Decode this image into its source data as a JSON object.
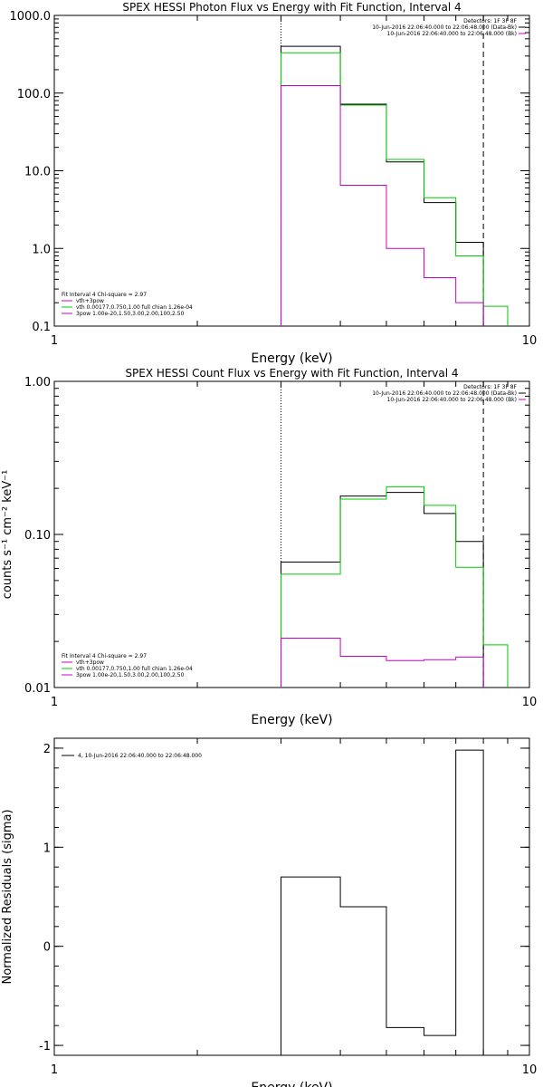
{
  "colors": {
    "black": "#000000",
    "green": "#00cc00",
    "magenta": "#cc00cc"
  },
  "chart_data": [
    {
      "type": "line",
      "title": "SPEX HESSI Photon Flux vs Energy with Fit Function, Interval 4",
      "xlabel": "Energy (keV)",
      "ylabel": "",
      "xscale": "log",
      "yscale": "log",
      "xlim": [
        1,
        10
      ],
      "ylim": [
        0.1,
        1000
      ],
      "x_ticks": [
        {
          "v": 1,
          "label": "1"
        },
        {
          "v": 10,
          "label": "10"
        }
      ],
      "y_ticks": [
        {
          "v": 0.1,
          "label": "0.1"
        },
        {
          "v": 1,
          "label": "1.0"
        },
        {
          "v": 10,
          "label": "10.0"
        },
        {
          "v": 100,
          "label": "100.0"
        },
        {
          "v": 1000,
          "label": "1000.0"
        }
      ],
      "vlines": [
        {
          "x": 3.0,
          "style": "dotted"
        },
        {
          "x": 8.0,
          "style": "dashed"
        }
      ],
      "legend_topright": [
        {
          "text": "Detectors: 1F 3F 8F",
          "color": "black"
        },
        {
          "text": "10-Jun-2016 22:06:40.000 to 22:06:48.000 (Data-Bk)",
          "color": "black"
        },
        {
          "text": "10-Jun-2016 22:06:40.000 to 22:06:48.000 (Bk)",
          "color": "magenta"
        }
      ],
      "legend_bottomleft": [
        {
          "text": "Fit Interval 4   Chi-square = 2.97",
          "color": "black"
        },
        {
          "text": "vth+3pow",
          "color": "magenta"
        },
        {
          "text": "vth 0.00177,0.750,1.00  full chian 1.26e-04",
          "color": "green"
        },
        {
          "text": "3pow 1.00e-20,1.50,3.00,2.00,100,2.50",
          "color": "magenta"
        }
      ],
      "series": [
        {
          "color": "black",
          "edges": [
            3.0,
            4.0,
            5.0,
            6.0,
            7.0,
            8.0
          ],
          "values": [
            400,
            72,
            13,
            3.9,
            1.2
          ]
        },
        {
          "color": "green",
          "edges": [
            3.0,
            4.0,
            5.0,
            6.0,
            7.0,
            8.0,
            9.0
          ],
          "values": [
            330,
            70,
            14,
            4.5,
            0.8,
            0.18
          ]
        },
        {
          "color": "magenta",
          "edges": [
            3.0,
            4.0,
            5.0,
            6.0,
            7.0,
            8.0
          ],
          "values": [
            125,
            6.5,
            1.0,
            0.42,
            0.2
          ]
        }
      ]
    },
    {
      "type": "line",
      "title": "SPEX HESSI Count Flux vs Energy with Fit Function, Interval 4",
      "xlabel": "Energy (keV)",
      "ylabel": "counts s⁻¹ cm⁻² keV⁻¹",
      "xscale": "log",
      "yscale": "log",
      "xlim": [
        1,
        10
      ],
      "ylim": [
        0.01,
        1
      ],
      "x_ticks": [
        {
          "v": 1,
          "label": "1"
        },
        {
          "v": 10,
          "label": "10"
        }
      ],
      "y_ticks": [
        {
          "v": 0.01,
          "label": "0.01"
        },
        {
          "v": 0.1,
          "label": "0.10"
        },
        {
          "v": 1,
          "label": "1.00"
        }
      ],
      "vlines": [
        {
          "x": 3.0,
          "style": "dotted"
        },
        {
          "x": 8.0,
          "style": "dashed"
        }
      ],
      "legend_topright": [
        {
          "text": "Detectors: 1F 3F 8F",
          "color": "black"
        },
        {
          "text": "10-Jun-2016 22:06:40.000 to 22:06:48.000 (Data-Bk)",
          "color": "black"
        },
        {
          "text": "10-Jun-2016 22:06:40.000 to 22:06:48.000 (Bk)",
          "color": "magenta"
        }
      ],
      "legend_bottomleft": [
        {
          "text": "Fit Interval 4   Chi-square = 2.97",
          "color": "black"
        },
        {
          "text": "vth+3pow",
          "color": "magenta"
        },
        {
          "text": "vth 0.00177,0.750,1.00  full chian 1.26e-04",
          "color": "green"
        },
        {
          "text": "3pow 1.00e-20,1.50,3.00,2.00,100,2.50",
          "color": "magenta"
        }
      ],
      "series": [
        {
          "color": "black",
          "edges": [
            3.0,
            4.0,
            5.0,
            6.0,
            7.0,
            8.0
          ],
          "values": [
            0.066,
            0.178,
            0.188,
            0.137,
            0.09
          ]
        },
        {
          "color": "green",
          "edges": [
            3.0,
            4.0,
            5.0,
            6.0,
            7.0,
            8.0,
            9.0
          ],
          "values": [
            0.055,
            0.17,
            0.205,
            0.155,
            0.061,
            0.019
          ]
        },
        {
          "color": "magenta",
          "edges": [
            3.0,
            4.0,
            5.0,
            6.0,
            7.0,
            8.0
          ],
          "values": [
            0.021,
            0.016,
            0.015,
            0.0152,
            0.0158
          ]
        }
      ]
    },
    {
      "type": "line",
      "title": "",
      "xlabel": "Energy (keV)",
      "ylabel": "Normalized Residuals (sigma)",
      "xscale": "log",
      "yscale": "linear",
      "xlim": [
        1,
        10
      ],
      "ylim": [
        -1.1,
        2.1
      ],
      "x_ticks": [
        {
          "v": 1,
          "label": "1"
        },
        {
          "v": 10,
          "label": "10"
        }
      ],
      "y_ticks": [
        {
          "v": -1,
          "label": "-1"
        },
        {
          "v": 0,
          "label": "0"
        },
        {
          "v": 1,
          "label": "1"
        },
        {
          "v": 2,
          "label": "2"
        }
      ],
      "vlines": [],
      "legend_topright": [],
      "legend_topleft": [
        {
          "text": "4, 10-Jun-2016 22:06:40.000 to 22:06:48.000",
          "color": "black"
        }
      ],
      "legend_bottomleft": [],
      "series": [
        {
          "color": "black",
          "edges": [
            3.0,
            4.0,
            5.0,
            6.0,
            7.0,
            8.0
          ],
          "values": [
            0.7,
            0.4,
            -0.82,
            -0.9,
            1.98
          ]
        }
      ]
    }
  ]
}
